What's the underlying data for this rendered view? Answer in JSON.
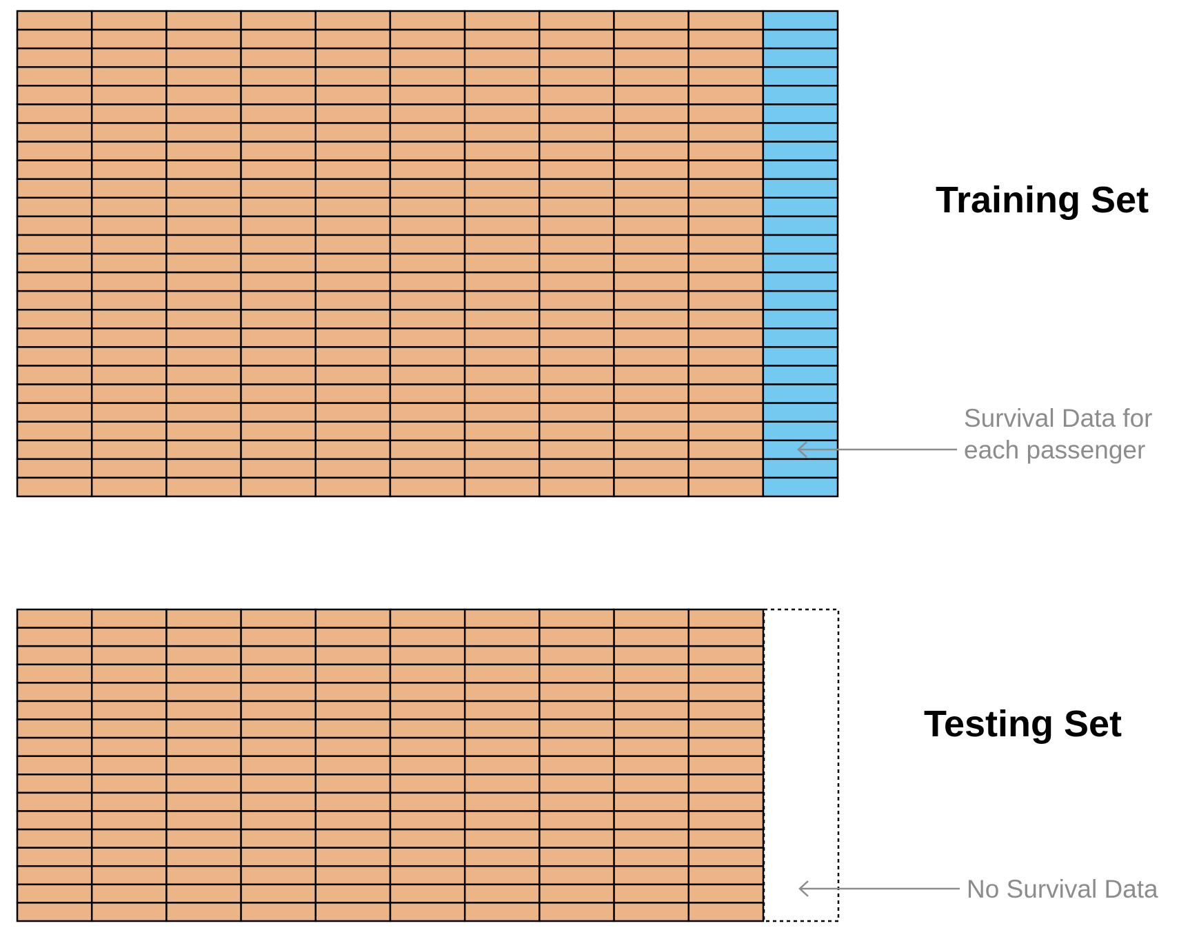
{
  "training_set": {
    "title": "Training Set",
    "feature_columns": 10,
    "label_columns": 1,
    "rows": 26,
    "annotation": [
      "Survival Data for",
      "each passenger"
    ]
  },
  "testing_set": {
    "title": "Testing Set",
    "feature_columns": 10,
    "rows": 17,
    "annotation": [
      "No Survival Data"
    ]
  },
  "colors": {
    "feature_cell": "#EBB587",
    "label_cell": "#74C9F1",
    "grid_line": "#000000",
    "annotation": "#8C8C8C"
  }
}
